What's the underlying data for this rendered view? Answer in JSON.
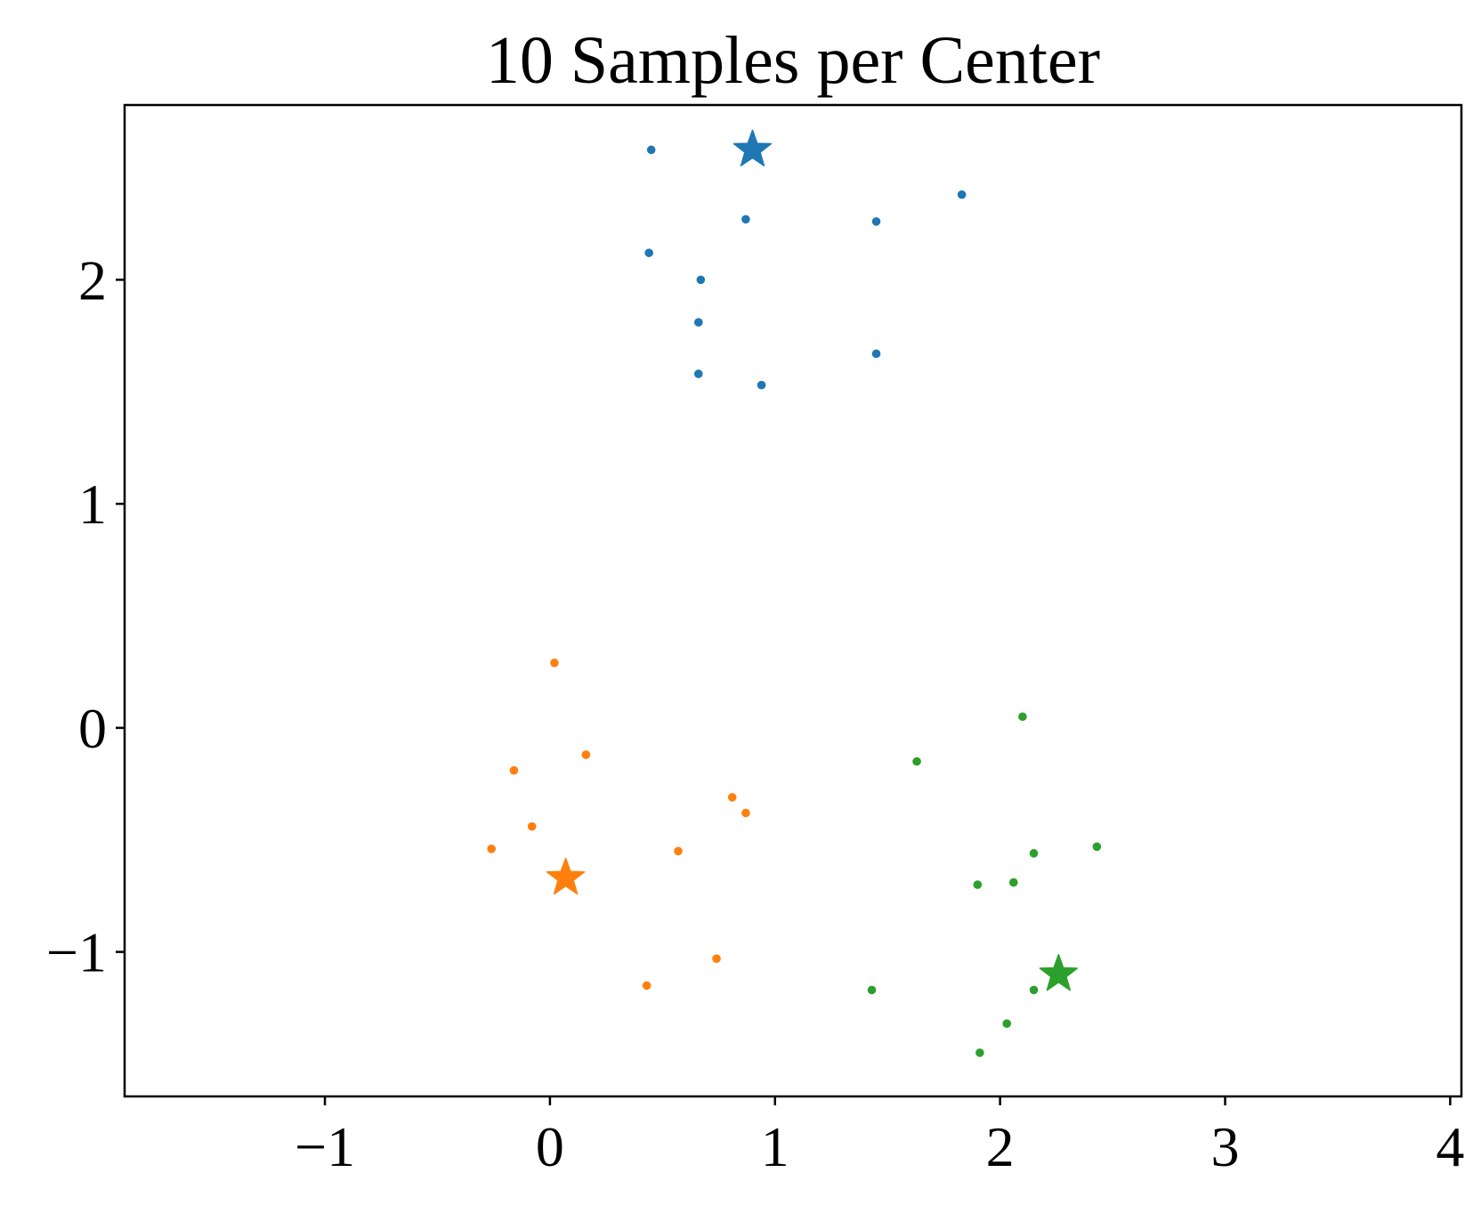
{
  "chart_data": {
    "type": "scatter",
    "title": "10 Samples per Center",
    "xlabel": "",
    "ylabel": "",
    "xlim": [
      -1.89,
      4.05
    ],
    "ylim": [
      -1.645,
      2.78
    ],
    "xticks": [
      -1,
      0,
      1,
      2,
      3,
      4
    ],
    "xtick_labels": [
      "−1",
      "0",
      "1",
      "2",
      "3",
      "4"
    ],
    "yticks": [
      -1,
      0,
      1,
      2
    ],
    "ytick_labels": [
      "−1",
      "0",
      "1",
      "2"
    ],
    "grid": false,
    "legend": "none",
    "series": [
      {
        "color": "#1f77b4",
        "center": {
          "x": 0.9,
          "y": 2.58
        },
        "points": [
          {
            "x": 0.45,
            "y": 2.58
          },
          {
            "x": 1.83,
            "y": 2.38
          },
          {
            "x": 0.87,
            "y": 2.27
          },
          {
            "x": 1.45,
            "y": 2.26
          },
          {
            "x": 0.44,
            "y": 2.12
          },
          {
            "x": 0.67,
            "y": 2.0
          },
          {
            "x": 0.66,
            "y": 1.81
          },
          {
            "x": 1.45,
            "y": 1.67
          },
          {
            "x": 0.66,
            "y": 1.58
          },
          {
            "x": 0.94,
            "y": 1.53
          }
        ]
      },
      {
        "color": "#ff7f0e",
        "center": {
          "x": 0.07,
          "y": -0.67
        },
        "points": [
          {
            "x": 0.02,
            "y": 0.29
          },
          {
            "x": 0.16,
            "y": -0.12
          },
          {
            "x": -0.16,
            "y": -0.19
          },
          {
            "x": 0.81,
            "y": -0.31
          },
          {
            "x": 0.87,
            "y": -0.38
          },
          {
            "x": -0.08,
            "y": -0.44
          },
          {
            "x": -0.26,
            "y": -0.54
          },
          {
            "x": 0.57,
            "y": -0.55
          },
          {
            "x": 0.74,
            "y": -1.03
          },
          {
            "x": 0.43,
            "y": -1.15
          }
        ]
      },
      {
        "color": "#2ca02c",
        "center": {
          "x": 2.26,
          "y": -1.1
        },
        "points": [
          {
            "x": 2.1,
            "y": 0.05
          },
          {
            "x": 1.63,
            "y": -0.15
          },
          {
            "x": 2.43,
            "y": -0.53
          },
          {
            "x": 2.15,
            "y": -0.56
          },
          {
            "x": 1.9,
            "y": -0.7
          },
          {
            "x": 2.06,
            "y": -0.69
          },
          {
            "x": 1.43,
            "y": -1.17
          },
          {
            "x": 2.15,
            "y": -1.17
          },
          {
            "x": 2.03,
            "y": -1.32
          },
          {
            "x": 1.91,
            "y": -1.45
          }
        ]
      }
    ]
  }
}
